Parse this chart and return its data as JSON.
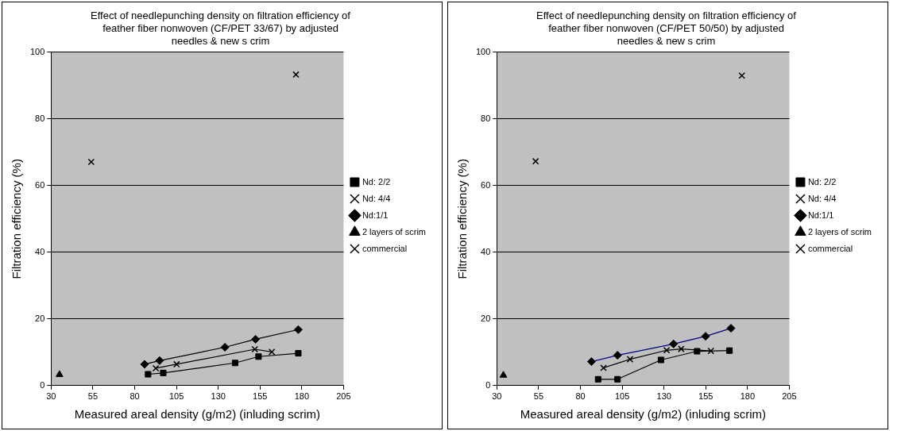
{
  "chart_data": [
    {
      "type": "line",
      "title": "Effect of needlepunching density on filtration efficiency of feather fiber nonwoven (CF/PET 33/67) by adjusted needles & new s crim",
      "xlabel": "Measured areal density (g/m2) (inluding scrim)",
      "ylabel": "Filtration efficiency (%)",
      "xlim": [
        30,
        205
      ],
      "xticks": [
        30,
        55,
        80,
        105,
        130,
        155,
        180,
        205
      ],
      "ylim": [
        0,
        100
      ],
      "yticks": [
        0,
        20,
        40,
        60,
        80,
        100
      ],
      "grid": "y",
      "legend": "right",
      "series": [
        {
          "name": "Nd: 2/2",
          "color": "#000000",
          "marker": "square",
          "x": [
            88.0,
            97.1,
            140.1,
            154.1,
            177.9
          ],
          "values": [
            3.4,
            3.8,
            6.8,
            8.7,
            9.7
          ]
        },
        {
          "name": "Nd: 4/4",
          "color": "#000000",
          "marker": "cross",
          "x": [
            92.6,
            105.1,
            151.9,
            162.1
          ],
          "values": [
            5.2,
            6.4,
            10.9,
            10.1
          ]
        },
        {
          "name": "Nd:1/1",
          "color": "#000000",
          "marker": "diamond",
          "x": [
            85.9,
            94.9,
            134.0,
            152.3,
            177.9
          ],
          "values": [
            6.4,
            7.5,
            11.5,
            13.9,
            16.8
          ]
        },
        {
          "name": "2 layers of scrim",
          "color": "#000000",
          "marker": "triangle",
          "x": [
            35.0
          ],
          "values": [
            3.3
          ]
        },
        {
          "name": "commercial",
          "type": "scatter",
          "color": "#000000",
          "marker": "cross",
          "x": [
            54.0,
            176.5
          ],
          "values": [
            67.1,
            93.3
          ]
        }
      ]
    },
    {
      "type": "line",
      "title": "Effect of needlepunching density on filtration efficiency of feather fiber nonwoven (CF/PET 50/50) by adjusted needles & new s crim",
      "xlabel": "Measured areal density (g/m2) (inluding scrim)",
      "ylabel": "Filtration efficiency (%)",
      "xlim": [
        30,
        205
      ],
      "xticks": [
        30,
        55,
        80,
        105,
        130,
        155,
        180,
        205
      ],
      "ylim": [
        0,
        100
      ],
      "yticks": [
        0,
        20,
        40,
        60,
        80,
        100
      ],
      "grid": "y",
      "legend": "right",
      "series": [
        {
          "name": "Nd: 2/2",
          "color": "#000000",
          "marker": "square",
          "x": [
            90.6,
            102.2,
            128.2,
            149.8,
            169.2
          ],
          "values": [
            1.9,
            1.9,
            7.7,
            10.3,
            10.5
          ]
        },
        {
          "name": "Nd: 4/4",
          "color": "#000000",
          "marker": "cross",
          "x": [
            93.8,
            109.7,
            131.6,
            140.3,
            158.1
          ],
          "values": [
            5.3,
            7.9,
            10.6,
            11.0,
            10.4
          ]
        },
        {
          "name": "Nd:1/1",
          "color": "#000080",
          "marker": "diamond",
          "x": [
            86.6,
            102.2,
            135.7,
            154.9,
            170.1
          ],
          "values": [
            7.2,
            9.1,
            12.5,
            14.8,
            17.2
          ]
        },
        {
          "name": "2 layers of scrim",
          "color": "#000000",
          "marker": "triangle",
          "x": [
            33.9
          ],
          "values": [
            3.1
          ]
        },
        {
          "name": "commercial",
          "type": "scatter",
          "color": "#000000",
          "marker": "cross",
          "x": [
            53.2,
            176.6
          ],
          "values": [
            67.3,
            93.0
          ]
        }
      ]
    }
  ]
}
